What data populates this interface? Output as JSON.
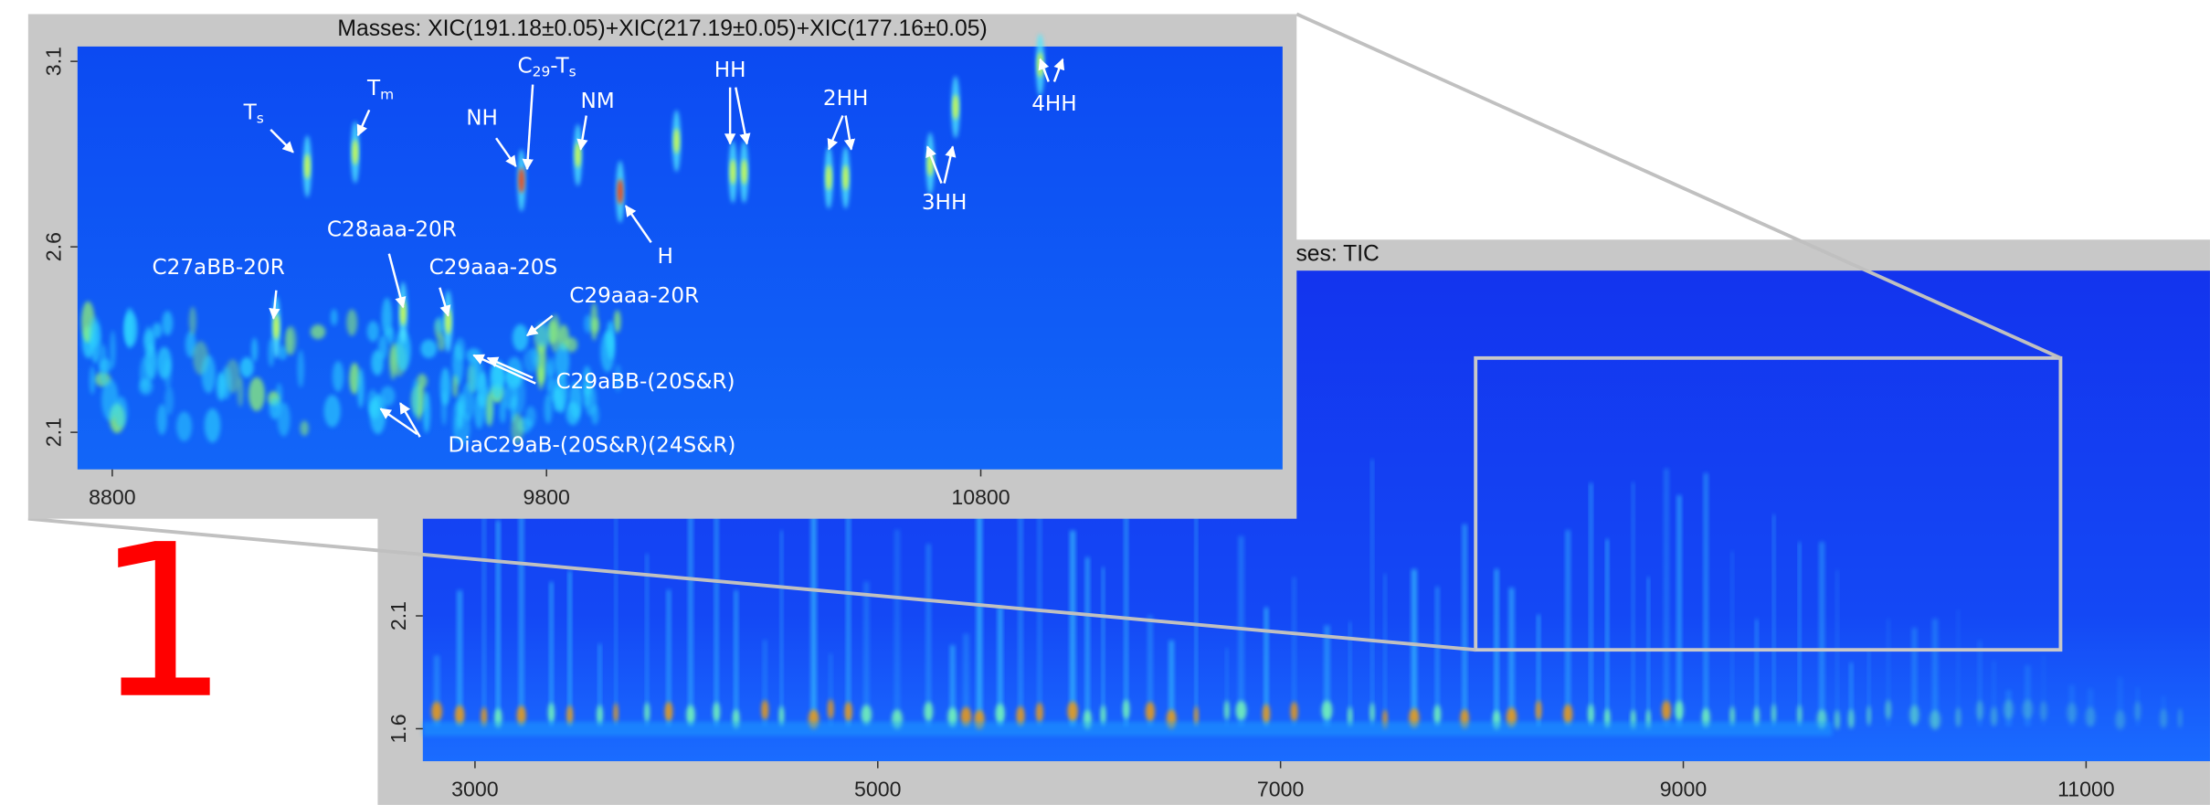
{
  "chart_data": [
    {
      "type": "image",
      "title": "Masses:  XIC(191.18±0.05)+XIC(217.19±0.05)+XIC(177.16±0.05)",
      "xlim": [
        8720,
        11495
      ],
      "xticks": [
        8800,
        9800,
        10800
      ],
      "ylim": [
        2.0,
        3.14
      ],
      "yticks": [
        2.1,
        2.6,
        3.1
      ],
      "annotations": [
        [
          "T",
          "s"
        ],
        [
          "T",
          "m"
        ],
        [
          "NH"
        ],
        [
          "C",
          "29",
          "-T",
          "s"
        ],
        [
          "NM"
        ],
        [
          "H"
        ],
        [
          "HH"
        ],
        [
          "2HH"
        ],
        [
          "3HH"
        ],
        [
          "4HH"
        ],
        [
          "C27aBB-20R"
        ],
        [
          "C28aaa-20R"
        ],
        [
          "C29aaa-20S"
        ],
        [
          "C29aaa-20R"
        ],
        [
          "C29aBB-(20S&R)"
        ],
        [
          "DiaC29aB-(20S&R)(24S&R)"
        ]
      ]
    },
    {
      "type": "image",
      "title": "Masses:  TIC",
      "xlim": [
        2741,
        11615
      ],
      "xticks": [
        3000,
        5000,
        7000,
        9000,
        11000
      ],
      "ylim": [
        1.456,
        3.63
      ],
      "yticks": [
        1.6,
        2.1
      ]
    }
  ],
  "panel_label": "1"
}
